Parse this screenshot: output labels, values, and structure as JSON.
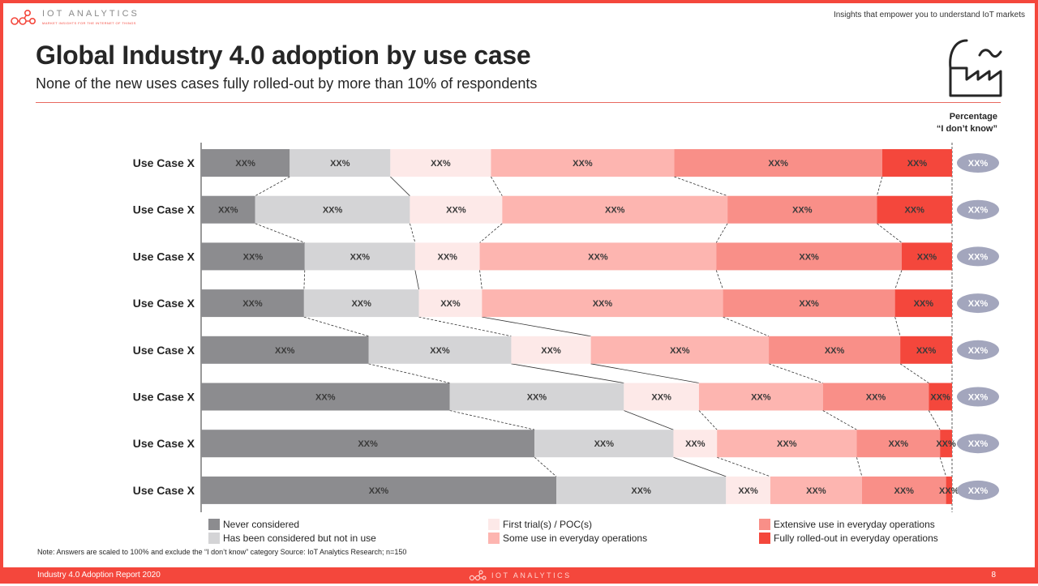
{
  "header": {
    "logo_text": "IOT ANALYTICS",
    "logo_subtext": "MARKET INSIGHTS FOR THE INTERNET OF THINGS",
    "tagline": "Insights that empower you to understand IoT markets"
  },
  "title": "Global Industry 4.0 adoption by use case",
  "subtitle": "None of the new uses cases fully rolled-out by more than 10% of respondents",
  "right_column_header": [
    "Percentage",
    "“I don’t know”"
  ],
  "note": "Note: Answers are scaled to 100% and exclude the “I don’t know” category Source: IoT Analytics Research; n=150",
  "footer": {
    "report": "Industry 4.0 Adoption Report 2020",
    "logo_text": "IOT ANALYTICS",
    "page": "8"
  },
  "colors": {
    "accent": "#f4473c",
    "segments": [
      "#8c8c8f",
      "#d4d4d6",
      "#fde9e8",
      "#fdb5b0",
      "#f98f88",
      "#f4473c"
    ],
    "pill": "#a3a6bd"
  },
  "chart_data": {
    "type": "bar",
    "orientation": "horizontal",
    "stacked": true,
    "title": "",
    "xlabel": "",
    "ylabel": "",
    "xlim": [
      0,
      100
    ],
    "categories": [
      "Use Case X",
      "Use Case X",
      "Use Case X",
      "Use Case X",
      "Use Case X",
      "Use Case X",
      "Use Case X",
      "Use Case X"
    ],
    "series": [
      {
        "name": "Never considered",
        "color": "#8c8c8f",
        "values": [
          11.8,
          7.2,
          13.8,
          13.7,
          22.3,
          33.1,
          44.4,
          47.3
        ],
        "labels": [
          "XX%",
          "XX%",
          "XX%",
          "XX%",
          "XX%",
          "XX%",
          "XX%",
          "XX%"
        ]
      },
      {
        "name": "Has been considered but not in use",
        "color": "#d4d4d6",
        "values": [
          13.4,
          20.6,
          14.7,
          15.3,
          19.0,
          23.2,
          18.5,
          22.6
        ],
        "labels": [
          "XX%",
          "XX%",
          "XX%",
          "XX%",
          "XX%",
          "XX%",
          "XX%",
          "XX%"
        ]
      },
      {
        "name": "First trial(s) / POC(s)",
        "color": "#fde9e8",
        "values": [
          13.4,
          12.3,
          8.6,
          8.4,
          10.6,
          10.0,
          5.8,
          5.9
        ],
        "labels": [
          "XX%",
          "XX%",
          "XX%",
          "XX%",
          "XX%",
          "XX%",
          "XX%",
          "XX%"
        ]
      },
      {
        "name": "Some use in everyday operations",
        "color": "#fdb5b0",
        "values": [
          24.4,
          30.0,
          31.5,
          32.1,
          23.7,
          16.5,
          18.6,
          12.2
        ],
        "labels": [
          "XX%",
          "XX%",
          "XX%",
          "XX%",
          "XX%",
          "XX%",
          "XX%",
          "XX%"
        ]
      },
      {
        "name": "Extensive use in everyday operations",
        "color": "#f98f88",
        "values": [
          27.7,
          19.9,
          24.7,
          22.9,
          17.5,
          14.1,
          11.1,
          11.2
        ],
        "labels": [
          "XX%",
          "XX%",
          "XX%",
          "XX%",
          "XX%",
          "XX%",
          "XX%",
          "XX%"
        ]
      },
      {
        "name": "Fully rolled-out in everyday operations",
        "color": "#f4473c",
        "values": [
          9.4,
          10.0,
          6.8,
          7.6,
          7.0,
          3.2,
          1.6,
          0.8
        ],
        "labels": [
          "XX%",
          "XX%",
          "XX%",
          "XX%",
          "XX%",
          "XX%",
          "XX%",
          "XX%"
        ]
      }
    ],
    "dont_know_labels": [
      "XX%",
      "XX%",
      "XX%",
      "XX%",
      "XX%",
      "XX%",
      "XX%",
      "XX%"
    ],
    "legend_position": "bottom",
    "grid": false
  }
}
